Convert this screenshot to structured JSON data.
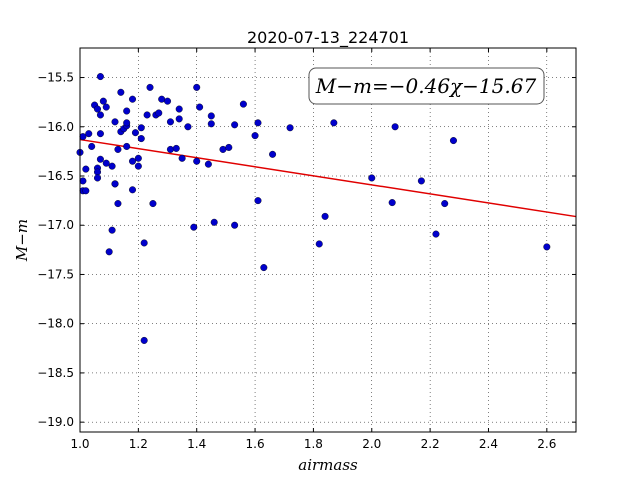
{
  "chart_data": {
    "type": "scatter",
    "title": "2020-07-13_224701",
    "xlabel": "airmass",
    "ylabel": "M−m",
    "xlim": [
      1.0,
      2.7
    ],
    "ylim": [
      -19.1,
      -15.2
    ],
    "y_inverted": true,
    "grid": true,
    "x_ticks": [
      1.0,
      1.2,
      1.4,
      1.6,
      1.8,
      2.0,
      2.2,
      2.4,
      2.6
    ],
    "x_tick_labels": [
      "1.0",
      "1.2",
      "1.4",
      "1.6",
      "1.8",
      "2.0",
      "2.2",
      "2.4",
      "2.6"
    ],
    "y_ticks": [
      -15.5,
      -16.0,
      -16.5,
      -17.0,
      -17.5,
      -18.0,
      -18.5,
      -19.0
    ],
    "y_tick_labels": [
      "−15.5",
      "−16.0",
      "−16.5",
      "−17.0",
      "−17.5",
      "−18.0",
      "−18.5",
      "−19.0"
    ],
    "annotation": "M−m=−0.46χ−15.67",
    "fit": {
      "slope": -0.46,
      "intercept": -15.67,
      "color": "#e00000"
    },
    "point_color": "#0000cc",
    "points": [
      [
        1.0,
        -16.26
      ],
      [
        1.01,
        -16.1
      ],
      [
        1.01,
        -16.55
      ],
      [
        1.01,
        -16.65
      ],
      [
        1.02,
        -16.43
      ],
      [
        1.02,
        -16.65
      ],
      [
        1.03,
        -16.07
      ],
      [
        1.04,
        -16.2
      ],
      [
        1.05,
        -15.78
      ],
      [
        1.06,
        -16.42
      ],
      [
        1.06,
        -16.46
      ],
      [
        1.06,
        -16.52
      ],
      [
        1.06,
        -15.82
      ],
      [
        1.07,
        -16.33
      ],
      [
        1.07,
        -16.07
      ],
      [
        1.07,
        -15.49
      ],
      [
        1.07,
        -15.88
      ],
      [
        1.08,
        -15.74
      ],
      [
        1.09,
        -15.8
      ],
      [
        1.09,
        -16.37
      ],
      [
        1.1,
        -17.27
      ],
      [
        1.11,
        -16.4
      ],
      [
        1.11,
        -17.05
      ],
      [
        1.12,
        -15.95
      ],
      [
        1.12,
        -16.58
      ],
      [
        1.12,
        -16.58
      ],
      [
        1.13,
        -16.78
      ],
      [
        1.13,
        -16.23
      ],
      [
        1.14,
        -16.05
      ],
      [
        1.14,
        -15.65
      ],
      [
        1.15,
        -16.02
      ],
      [
        1.16,
        -16.2
      ],
      [
        1.16,
        -15.99
      ],
      [
        1.16,
        -15.84
      ],
      [
        1.16,
        -15.96
      ],
      [
        1.18,
        -15.72
      ],
      [
        1.18,
        -16.35
      ],
      [
        1.18,
        -16.64
      ],
      [
        1.19,
        -16.06
      ],
      [
        1.2,
        -16.32
      ],
      [
        1.2,
        -16.4
      ],
      [
        1.21,
        -16.01
      ],
      [
        1.21,
        -16.12
      ],
      [
        1.22,
        -17.18
      ],
      [
        1.22,
        -18.17
      ],
      [
        1.23,
        -15.88
      ],
      [
        1.24,
        -15.6
      ],
      [
        1.25,
        -16.78
      ],
      [
        1.26,
        -15.88
      ],
      [
        1.27,
        -15.86
      ],
      [
        1.28,
        -15.72
      ],
      [
        1.3,
        -15.74
      ],
      [
        1.31,
        -15.95
      ],
      [
        1.31,
        -16.23
      ],
      [
        1.33,
        -16.22
      ],
      [
        1.34,
        -15.92
      ],
      [
        1.34,
        -15.82
      ],
      [
        1.35,
        -16.32
      ],
      [
        1.37,
        -16.0
      ],
      [
        1.39,
        -17.02
      ],
      [
        1.4,
        -15.6
      ],
      [
        1.4,
        -16.35
      ],
      [
        1.41,
        -15.8
      ],
      [
        1.44,
        -16.38
      ],
      [
        1.45,
        -15.97
      ],
      [
        1.45,
        -15.89
      ],
      [
        1.46,
        -16.97
      ],
      [
        1.49,
        -16.23
      ],
      [
        1.51,
        -16.21
      ],
      [
        1.53,
        -17.0
      ],
      [
        1.53,
        -15.98
      ],
      [
        1.56,
        -15.77
      ],
      [
        1.6,
        -16.09
      ],
      [
        1.61,
        -15.96
      ],
      [
        1.61,
        -16.75
      ],
      [
        1.63,
        -17.43
      ],
      [
        1.66,
        -16.28
      ],
      [
        1.72,
        -16.01
      ],
      [
        1.82,
        -17.19
      ],
      [
        1.84,
        -16.91
      ],
      [
        1.87,
        -15.96
      ],
      [
        2.0,
        -16.52
      ],
      [
        2.07,
        -16.77
      ],
      [
        2.08,
        -16.0
      ],
      [
        2.17,
        -16.55
      ],
      [
        2.22,
        -17.09
      ],
      [
        2.25,
        -16.78
      ],
      [
        2.28,
        -16.14
      ],
      [
        2.6,
        -17.22
      ]
    ]
  }
}
